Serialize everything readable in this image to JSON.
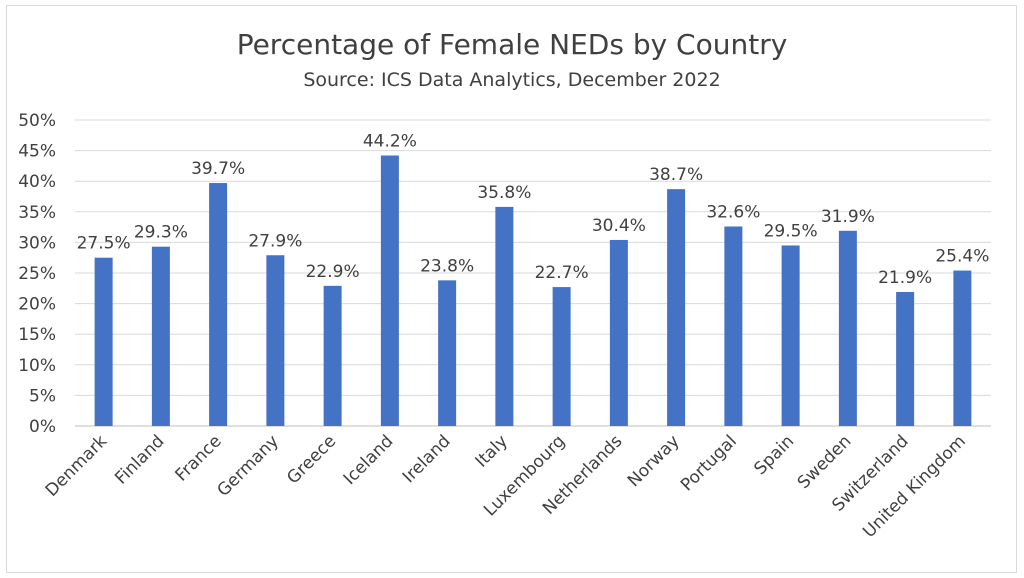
{
  "chart_data": {
    "type": "bar",
    "title": "Percentage of Female NEDs by Country",
    "subtitle": "Source: ICS Data Analytics, December 2022",
    "xlabel": "",
    "ylabel": "",
    "ylim": [
      0,
      50
    ],
    "yticks": [
      "0%",
      "5%",
      "10%",
      "15%",
      "20%",
      "25%",
      "30%",
      "35%",
      "40%",
      "45%",
      "50%"
    ],
    "grid": true,
    "legend": "none",
    "bar_color": "#4472C4",
    "categories": [
      "Denmark",
      "Finland",
      "France",
      "Germany",
      "Greece",
      "Iceland",
      "Ireland",
      "Italy",
      "Luxembourg",
      "Netherlands",
      "Norway",
      "Portugal",
      "Spain",
      "Sweden",
      "Switzerland",
      "United Kingdom"
    ],
    "values": [
      27.5,
      29.3,
      39.7,
      27.9,
      22.9,
      44.2,
      23.8,
      35.8,
      22.7,
      30.4,
      38.7,
      32.6,
      29.5,
      31.9,
      21.9,
      25.4
    ],
    "data_labels": [
      "27.5%",
      "29.3%",
      "39.7%",
      "27.9%",
      "22.9%",
      "44.2%",
      "23.8%",
      "35.8%",
      "22.7%",
      "30.4%",
      "38.7%",
      "32.6%",
      "29.5%",
      "31.9%",
      "21.9%",
      "25.4%"
    ]
  }
}
